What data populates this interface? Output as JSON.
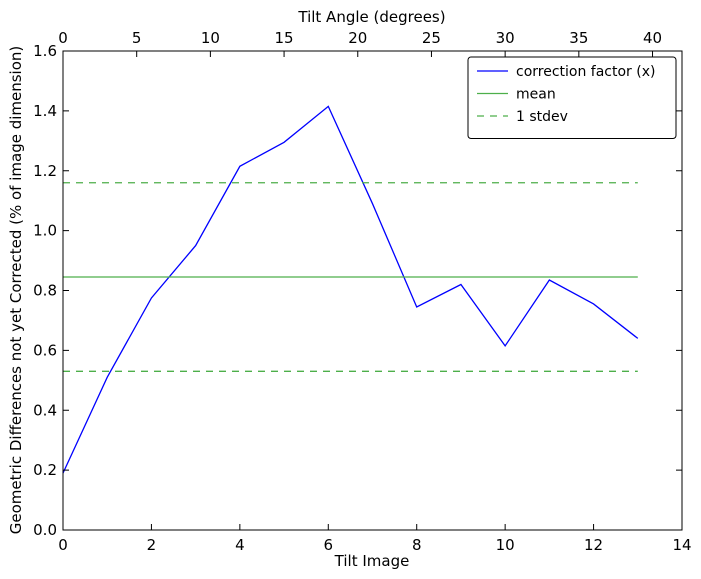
{
  "chart_data": {
    "type": "line",
    "title": "",
    "xlabel": "Tilt Image",
    "ylabel": "Geometric Differences not yet Corrected (% of image dimension)",
    "x2label": "Tilt Angle (degrees)",
    "xlim": [
      0,
      14
    ],
    "ylim": [
      0.0,
      1.6
    ],
    "x2lim": [
      0,
      42
    ],
    "xticks": [
      "0",
      "2",
      "4",
      "6",
      "8",
      "10",
      "12",
      "14"
    ],
    "yticks": [
      "0.0",
      "0.2",
      "0.4",
      "0.6",
      "0.8",
      "1.0",
      "1.2",
      "1.4",
      "1.6"
    ],
    "x2ticks": [
      "0",
      "5",
      "10",
      "15",
      "20",
      "25",
      "30",
      "35",
      "40"
    ],
    "grid": false,
    "legend_position": "top-right",
    "series": [
      {
        "name": "correction factor (x)",
        "style": "solid",
        "color": "#0000ff",
        "x": [
          0,
          1,
          2,
          3,
          4,
          5,
          6,
          7,
          8,
          9,
          10,
          11,
          12,
          13
        ],
        "values": [
          0.19,
          0.51,
          0.775,
          0.95,
          1.215,
          1.295,
          1.415,
          1.09,
          0.745,
          0.82,
          0.615,
          0.835,
          0.755,
          0.64
        ]
      },
      {
        "name": "mean",
        "style": "solid",
        "color": "#4daf4a",
        "x": [
          0,
          13
        ],
        "values": [
          0.845,
          0.845
        ]
      },
      {
        "name": "1 stdev",
        "style": "dashed",
        "color": "#4daf4a",
        "x": [
          0,
          13
        ],
        "values": [
          1.16,
          1.16
        ]
      },
      {
        "name": "",
        "style": "dashed",
        "color": "#4daf4a",
        "x": [
          0,
          13
        ],
        "values": [
          0.53,
          0.53
        ]
      }
    ]
  }
}
